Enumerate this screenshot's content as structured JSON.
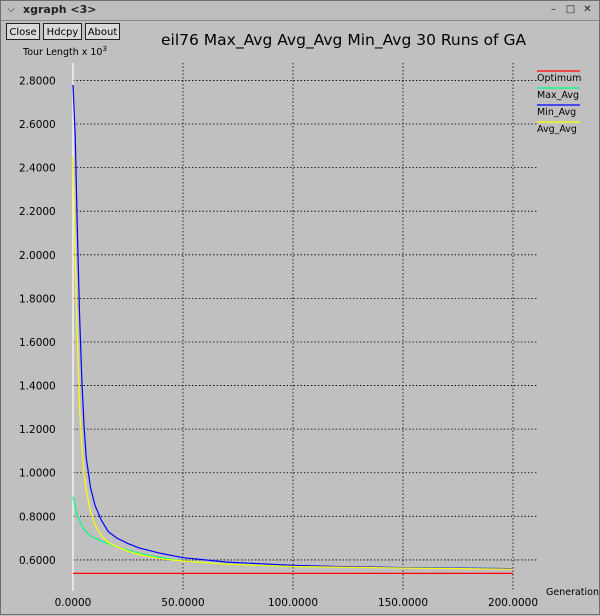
{
  "window": {
    "title": "xgraph <3>",
    "menu_icon": "chevron-down-icon",
    "controls": [
      "minimize-icon",
      "maximize-icon",
      "close-icon"
    ]
  },
  "toolbar": {
    "close_label": "Close",
    "hdcpy_label": "Hdcpy",
    "about_label": "About"
  },
  "chart_data": {
    "type": "line",
    "title": "eil76 Max_Avg Avg_Avg Min_Avg 30 Runs of GA",
    "ylabel_text": "Tour Length x 10",
    "ylabel_exp": "3",
    "xlabel": "Generation",
    "xlim": [
      0,
      200000
    ],
    "ylim": [
      0.54,
      2.88
    ],
    "x_ticks": [
      0,
      50000,
      100000,
      150000,
      200000
    ],
    "x_tick_labels": [
      "0.0000",
      "50.0000",
      "100.0000",
      "150.0000",
      "200.0000"
    ],
    "y_ticks": [
      0.6,
      0.8,
      1.0,
      1.2,
      1.4,
      1.6,
      1.8,
      2.0,
      2.2,
      2.4,
      2.6,
      2.8
    ],
    "y_tick_labels": [
      "0.6000",
      "0.8000",
      "1.0000",
      "1.2000",
      "1.4000",
      "1.6000",
      "1.8000",
      "2.0000",
      "2.2000",
      "2.4000",
      "2.6000",
      "2.8000"
    ],
    "grid": true,
    "legend_position": "top-right",
    "series": [
      {
        "name": "Optimum",
        "color": "#ff0000",
        "x": [
          0,
          200000
        ],
        "y": [
          0.538,
          0.538
        ]
      },
      {
        "name": "Max_Avg",
        "color": "#00ff7f",
        "x": [
          0,
          2000,
          5000,
          8000,
          12000,
          16000,
          20000,
          25000,
          30000,
          40000,
          50000,
          70000,
          100000,
          150000,
          200000
        ],
        "y": [
          0.89,
          0.8,
          0.74,
          0.71,
          0.69,
          0.675,
          0.66,
          0.645,
          0.63,
          0.61,
          0.595,
          0.58,
          0.57,
          0.565,
          0.56
        ]
      },
      {
        "name": "Min_Avg",
        "color": "#0000ff",
        "x": [
          0,
          1000,
          2000,
          3000,
          4000,
          5000,
          6000,
          8000,
          10000,
          13000,
          16000,
          20000,
          25000,
          30000,
          40000,
          50000,
          60000,
          70000,
          80000,
          100000,
          120000,
          150000,
          200000
        ],
        "y": [
          2.78,
          2.55,
          2.1,
          1.72,
          1.43,
          1.22,
          1.07,
          0.93,
          0.85,
          0.78,
          0.73,
          0.7,
          0.675,
          0.655,
          0.63,
          0.61,
          0.6,
          0.59,
          0.585,
          0.575,
          0.57,
          0.565,
          0.56
        ]
      },
      {
        "name": "Avg_Avg",
        "color": "#ffff00",
        "x": [
          0,
          1000,
          2000,
          3000,
          4000,
          5000,
          6000,
          8000,
          10000,
          13000,
          16000,
          20000,
          25000,
          30000,
          40000,
          50000,
          70000,
          100000,
          150000,
          200000
        ],
        "y": [
          2.45,
          2.0,
          1.6,
          1.3,
          1.12,
          1.0,
          0.92,
          0.82,
          0.76,
          0.71,
          0.68,
          0.66,
          0.64,
          0.625,
          0.605,
          0.595,
          0.58,
          0.57,
          0.563,
          0.558
        ]
      }
    ]
  }
}
